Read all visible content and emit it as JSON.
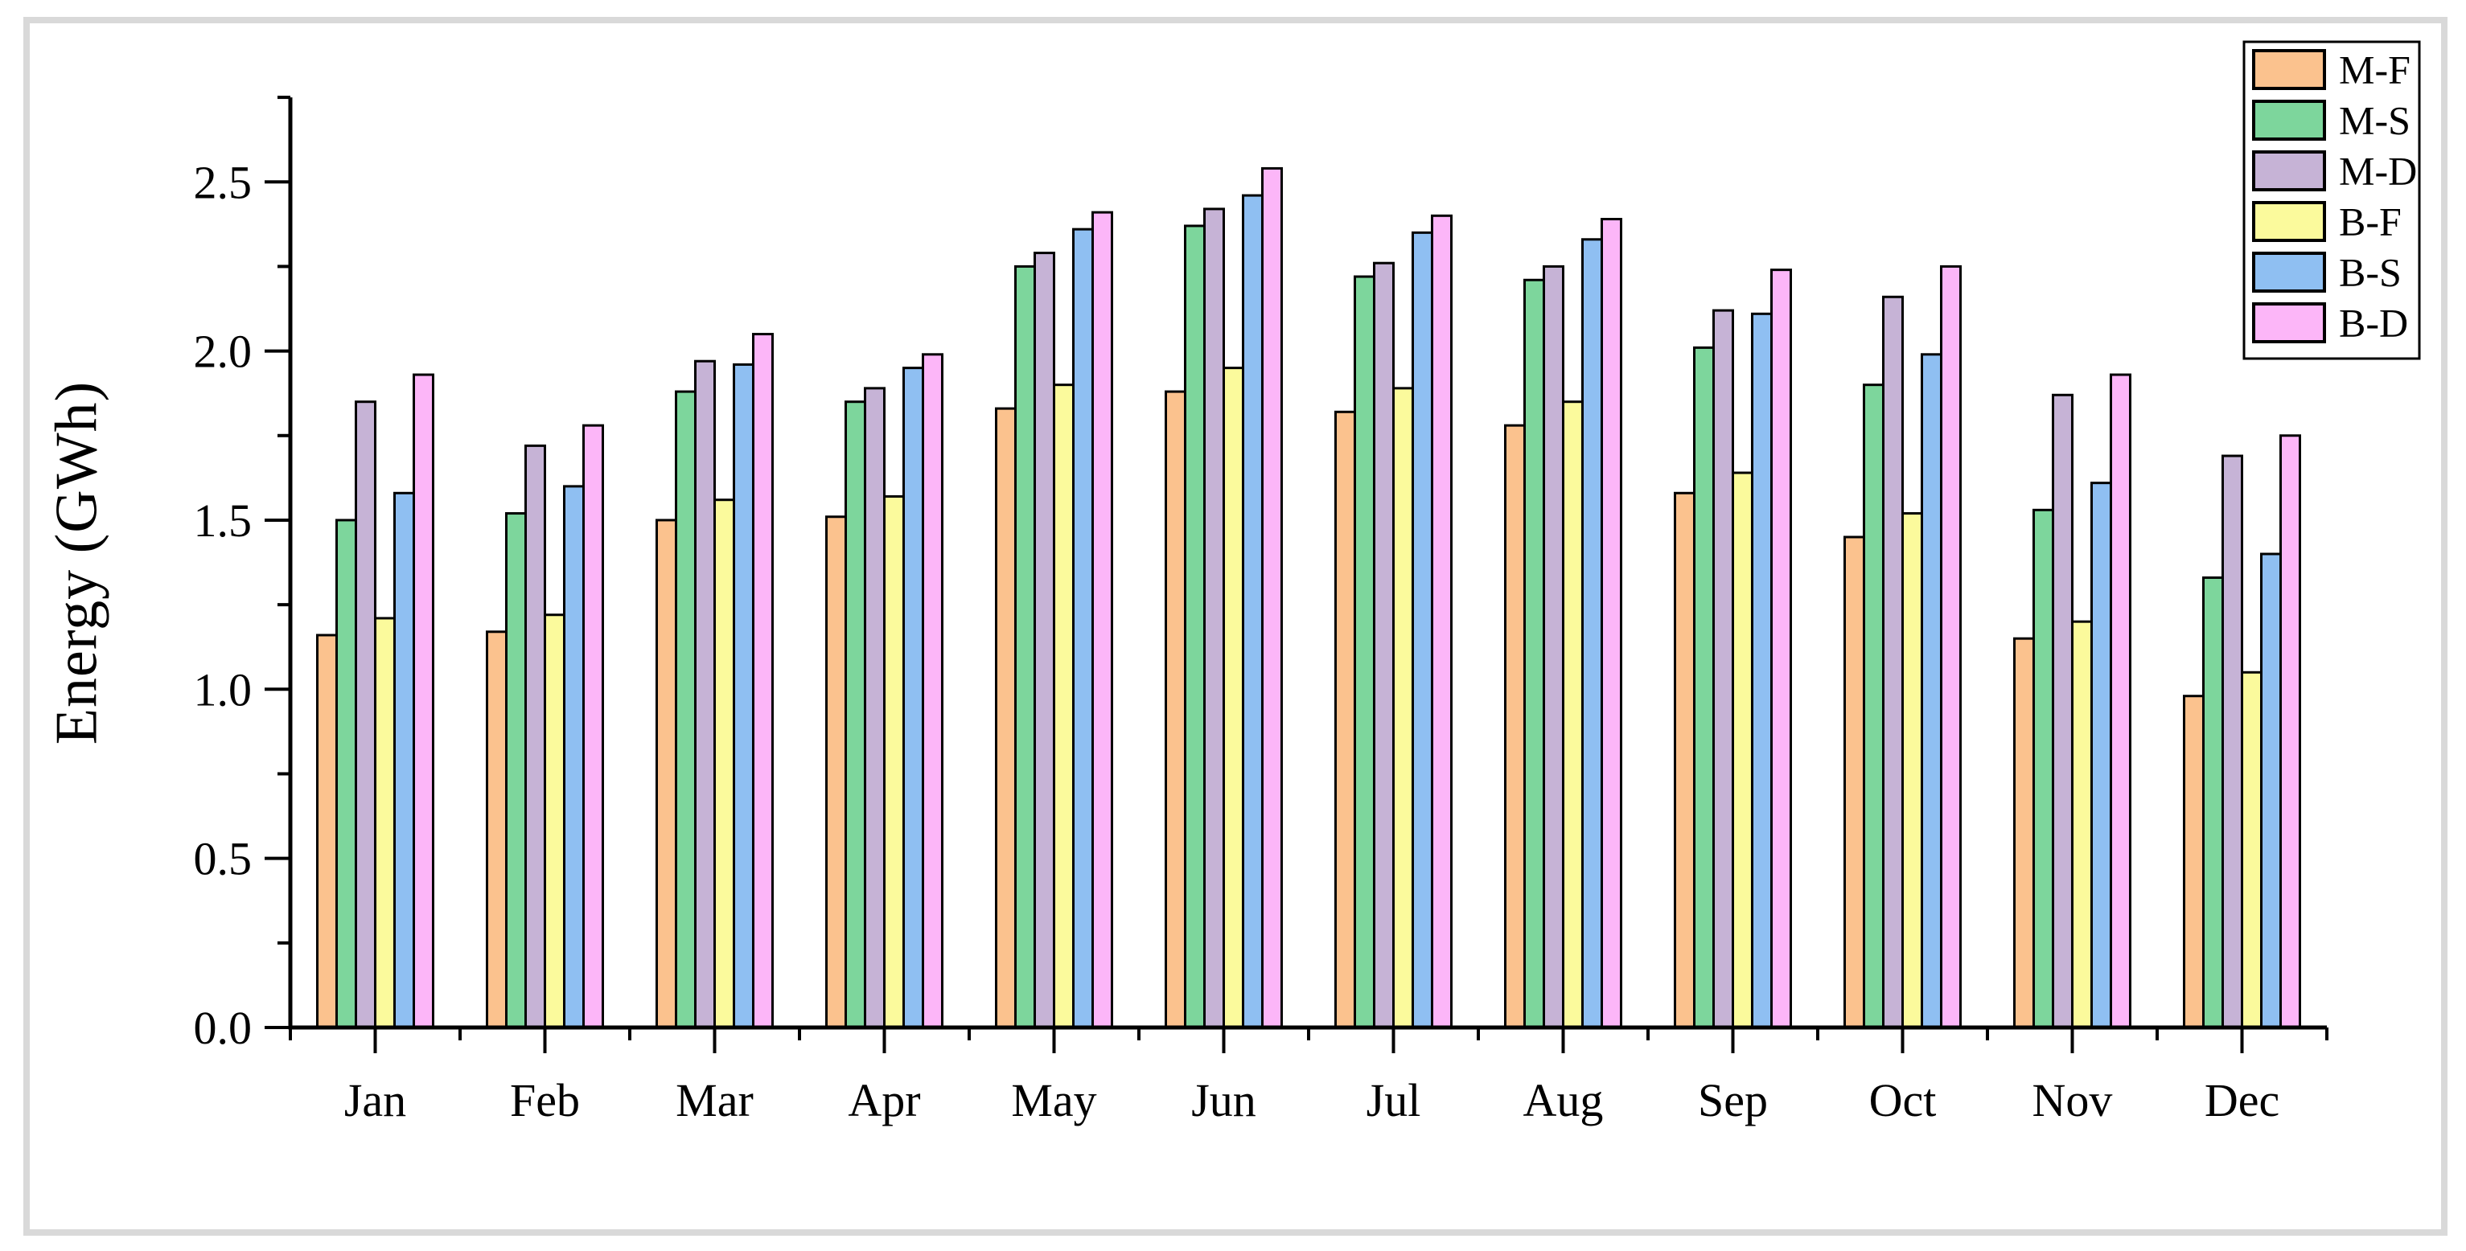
{
  "frame": {
    "border_color": "#D9D9D9"
  },
  "chart_data": {
    "type": "bar",
    "title": "",
    "xlabel": "",
    "ylabel": "Energy (GWh)",
    "categories": [
      "Jan",
      "Feb",
      "Mar",
      "Apr",
      "May",
      "Jun",
      "Jul",
      "Aug",
      "Sep",
      "Oct",
      "Nov",
      "Dec"
    ],
    "ylim": [
      0,
      2.75
    ],
    "y_ticks_major": [
      "0.0",
      "0.5",
      "1.0",
      "1.5",
      "2.0",
      "2.5"
    ],
    "y_tick_major_step": 0.5,
    "y_tick_minor_step": 0.25,
    "grid": false,
    "legend_position": "top-right",
    "axis_color": "#000000",
    "bar_outline_color": "#000000",
    "series": [
      {
        "name": "M-F",
        "color": "#FBC28E",
        "values": [
          1.16,
          1.17,
          1.5,
          1.51,
          1.83,
          1.88,
          1.82,
          1.78,
          1.58,
          1.45,
          1.15,
          0.98
        ]
      },
      {
        "name": "M-S",
        "color": "#7DD69C",
        "values": [
          1.5,
          1.52,
          1.88,
          1.85,
          2.25,
          2.37,
          2.22,
          2.21,
          2.01,
          1.9,
          1.53,
          1.33
        ]
      },
      {
        "name": "M-D",
        "color": "#C6B3D6",
        "values": [
          1.85,
          1.72,
          1.97,
          1.89,
          2.29,
          2.42,
          2.26,
          2.25,
          2.12,
          2.16,
          1.87,
          1.69
        ]
      },
      {
        "name": "B-F",
        "color": "#FBFA9C",
        "values": [
          1.21,
          1.22,
          1.56,
          1.57,
          1.9,
          1.95,
          1.89,
          1.85,
          1.64,
          1.52,
          1.2,
          1.05
        ]
      },
      {
        "name": "B-S",
        "color": "#8FBFF2",
        "values": [
          1.58,
          1.6,
          1.96,
          1.95,
          2.36,
          2.46,
          2.35,
          2.33,
          2.11,
          1.99,
          1.61,
          1.4
        ]
      },
      {
        "name": "B-D",
        "color": "#FCB6F8",
        "values": [
          1.93,
          1.78,
          2.05,
          1.99,
          2.41,
          2.54,
          2.4,
          2.39,
          2.24,
          2.25,
          1.93,
          1.75
        ]
      }
    ]
  }
}
